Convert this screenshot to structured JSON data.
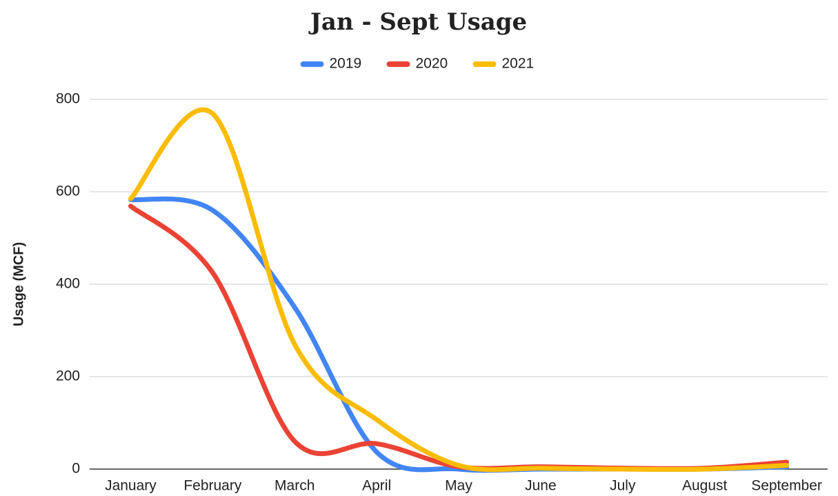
{
  "chart_data": {
    "type": "line",
    "title": "Jan - Sept Usage",
    "y_label": "Usage (MCF)",
    "categories": [
      "January",
      "February",
      "March",
      "April",
      "May",
      "June",
      "July",
      "August",
      "September"
    ],
    "series": [
      {
        "name": "2019",
        "color": "#4285f4",
        "values": [
          583,
          560,
          350,
          37,
          0,
          0,
          0,
          0,
          5
        ]
      },
      {
        "name": "2020",
        "color": "#ea4335",
        "values": [
          569,
          425,
          60,
          55,
          5,
          5,
          2,
          2,
          15
        ]
      },
      {
        "name": "2021",
        "color": "#fbbc04",
        "values": [
          585,
          769,
          270,
          107,
          8,
          2,
          0,
          0,
          8
        ]
      }
    ],
    "ylim": [
      0,
      800
    ],
    "yticks": [
      0,
      200,
      400,
      600,
      800
    ],
    "grid": true,
    "legend": "top",
    "smooth": true
  }
}
